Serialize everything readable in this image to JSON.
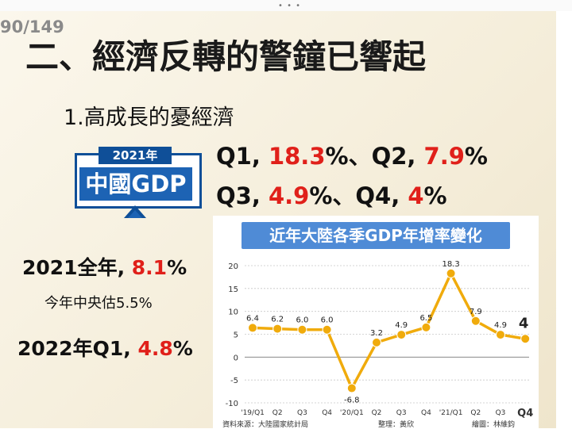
{
  "page_number": "90/149",
  "title": "二、經濟反轉的警鐘已響起",
  "subtitle": "1.高成長的憂經濟",
  "badge": {
    "year": "2021年",
    "label": "中國GDP",
    "color": "#1d63b4"
  },
  "quarters": {
    "line1": {
      "q1_label": "Q1, ",
      "q1_value": "18.3",
      "pct1": "%、",
      "q2_label": "Q2, ",
      "q2_value": "7.9",
      "pct2": "%"
    },
    "line2": {
      "q3_label": "Q3, ",
      "q3_value": "4.9",
      "pct3": "%、",
      "q4_label": "Q4, ",
      "q4_value": "4",
      "pct4": "%"
    }
  },
  "annual": {
    "label": "2021全年, ",
    "value": "8.1",
    "pct": "%"
  },
  "note": "今年中央估5.5%",
  "q1_2022": {
    "label": "2022年Q1, ",
    "value": "4.8",
    "pct": "%"
  },
  "colors": {
    "highlight": "#e0201a",
    "line": "#f0ab0c",
    "title_bar": "#4f8bd6"
  },
  "chart_data": {
    "type": "line",
    "title": "近年大陸各季GDP年增率變化",
    "categories": [
      "'19/Q1",
      "Q2",
      "Q3",
      "Q4",
      "'20/Q1",
      "Q2",
      "Q3",
      "Q4",
      "'21/Q1",
      "Q2",
      "Q3",
      "Q4"
    ],
    "values": [
      6.4,
      6.2,
      6.0,
      6.0,
      -6.8,
      3.2,
      4.9,
      6.5,
      18.3,
      7.9,
      4.9,
      4
    ],
    "data_labels": [
      "6.4",
      "6.2",
      "6.0",
      "6.0",
      "-6.8",
      "3.2",
      "4.9",
      "6.5",
      "18.3",
      "7.9",
      "4.9",
      "4"
    ],
    "yticks": [
      "20",
      "15",
      "10",
      "5",
      "0",
      "-5",
      "-10"
    ],
    "ylim": [
      -10,
      20
    ],
    "grid": true,
    "source": "資料來源：大陸國家統計局",
    "compiled": "整理：黃欣",
    "drawn": "繪圖：林維鈞"
  }
}
